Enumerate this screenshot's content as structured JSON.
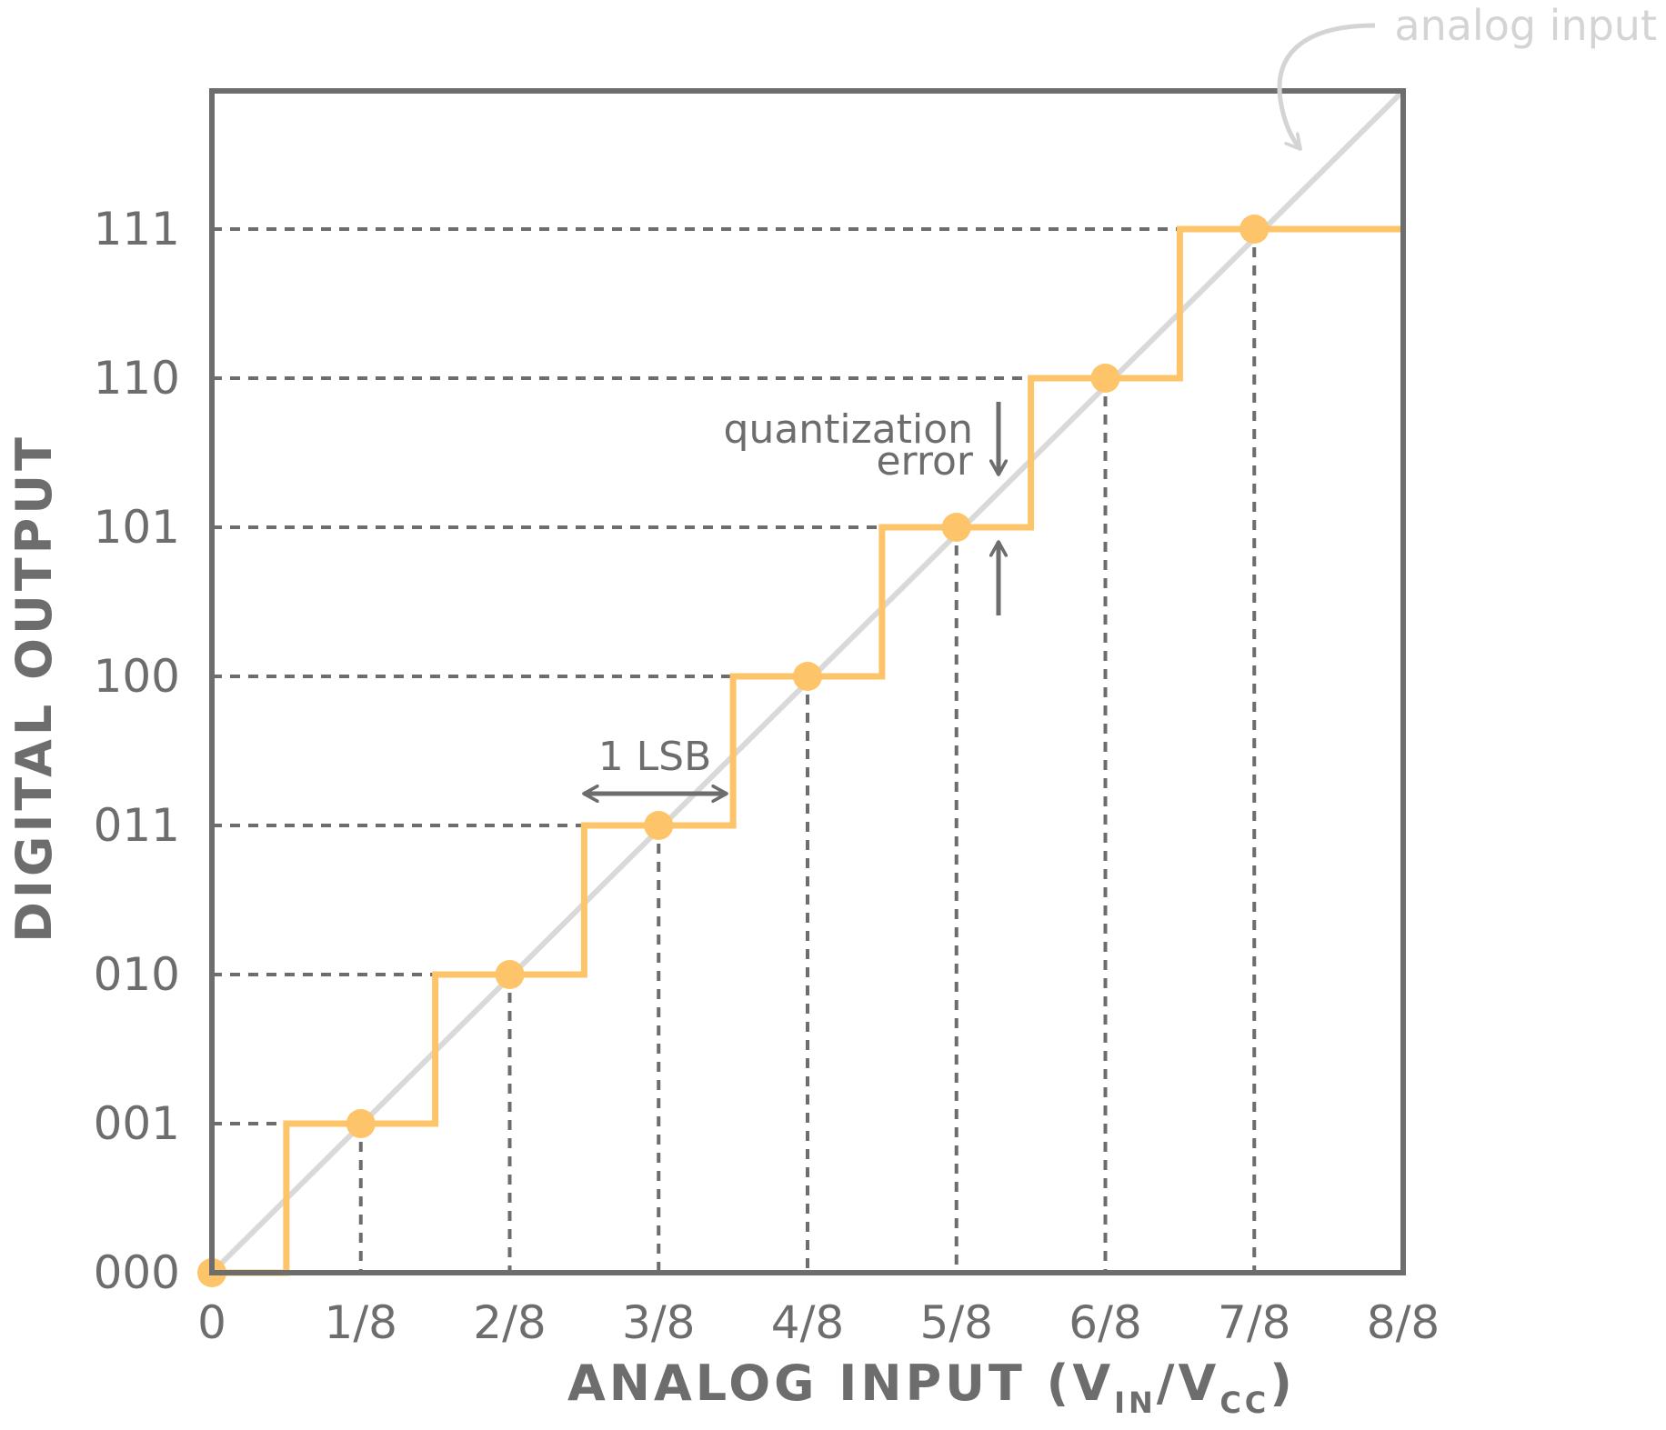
{
  "chart_data": {
    "type": "line",
    "xlabel": "ANALOG INPUT (V",
    "xlabel_sub1": "IN",
    "xlabel_mid": "/V",
    "xlabel_sub2": "CC",
    "xlabel_end": ")",
    "ylabel": "DIGITAL OUTPUT",
    "x_ticks": [
      "0",
      "1/8",
      "2/8",
      "3/8",
      "4/8",
      "5/8",
      "6/8",
      "7/8",
      "8/8"
    ],
    "y_ticks": [
      "000",
      "001",
      "010",
      "011",
      "100",
      "101",
      "110",
      "111"
    ],
    "xlim": [
      0,
      1
    ],
    "ylim": [
      0,
      7
    ],
    "series": [
      {
        "name": "analog input",
        "style": "ideal line",
        "color": "#d9d9d9",
        "x": [
          0,
          1
        ],
        "y": [
          0,
          8
        ]
      },
      {
        "style": "staircase",
        "color": "#fec46a",
        "x": [
          0,
          0.0625,
          0.0625,
          0.1875,
          0.1875,
          0.3125,
          0.3125,
          0.4375,
          0.4375,
          0.5625,
          0.5625,
          0.6875,
          0.6875,
          0.8125,
          0.8125,
          1.0
        ],
        "y": [
          0,
          0,
          1,
          1,
          2,
          2,
          3,
          3,
          4,
          4,
          5,
          5,
          6,
          6,
          7,
          7
        ]
      },
      {
        "style": "markers",
        "color": "#fec46a",
        "x": [
          0,
          0.125,
          0.25,
          0.375,
          0.5,
          0.625,
          0.75,
          0.875
        ],
        "y": [
          0,
          1,
          2,
          3,
          4,
          5,
          6,
          7
        ]
      }
    ],
    "annotations": {
      "lsb": "1 LSB",
      "quant_line1": "quantization",
      "quant_line2": "error",
      "analog": "analog input"
    },
    "grid": "dashed guide lines to each code point",
    "colors": {
      "frame": "#6d6d6d",
      "guides": "#6d6d6d",
      "staircase": "#fec46a",
      "ideal": "#d9d9d9"
    }
  }
}
